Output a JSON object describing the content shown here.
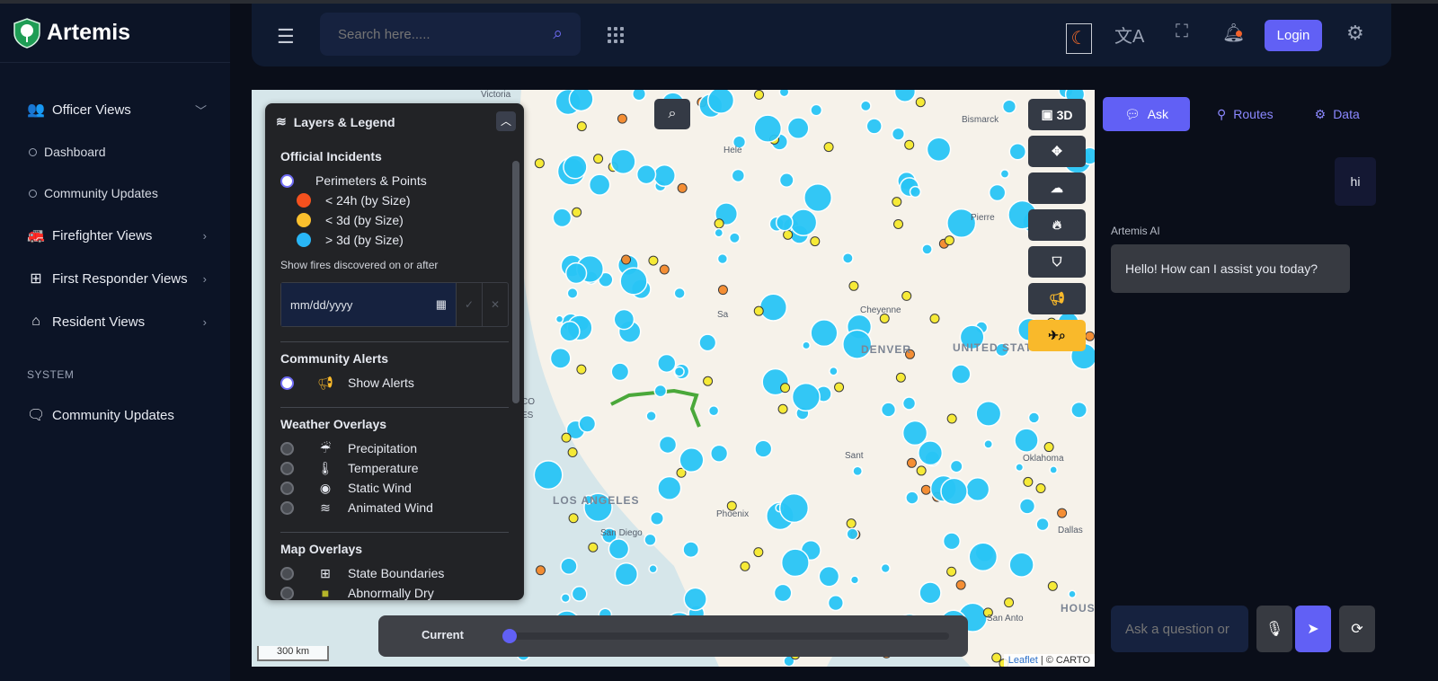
{
  "app": {
    "name": "Artemis"
  },
  "sidebar": {
    "officer": {
      "label": "Officer Views",
      "items": [
        {
          "label": "Dashboard"
        },
        {
          "label": "Community Updates"
        }
      ]
    },
    "groups": [
      {
        "label": "Firefighter Views"
      },
      {
        "label": "First Responder Views"
      },
      {
        "label": "Resident Views"
      }
    ],
    "section": "SYSTEM",
    "system_items": [
      {
        "label": "Community Updates"
      }
    ]
  },
  "topbar": {
    "search_placeholder": "Search here.....",
    "login_label": "Login",
    "notification_dot_color": "#f2622b"
  },
  "legend": {
    "title": "Layers & Legend",
    "official": {
      "title": "Official Incidents",
      "toggle": "Perimeters & Points",
      "checked": true,
      "keys": [
        {
          "label": "< 24h (by Size)",
          "color": "#f4511e"
        },
        {
          "label": "< 3d (by Size)",
          "color": "#fbc02d"
        },
        {
          "label": "> 3d (by Size)",
          "color": "#29b6f6"
        }
      ],
      "date_hint": "Show fires discovered on or after",
      "date_placeholder": "mm/dd/yyyy"
    },
    "community": {
      "title": "Community Alerts",
      "toggle": "Show Alerts",
      "checked": true
    },
    "weather": {
      "title": "Weather Overlays",
      "items": [
        {
          "label": "Precipitation",
          "icon": "cloud-rain-icon"
        },
        {
          "label": "Temperature",
          "icon": "thermometer-icon"
        },
        {
          "label": "Static Wind",
          "icon": "compass-icon"
        },
        {
          "label": "Animated Wind",
          "icon": "wind-icon"
        }
      ]
    },
    "map_overlays": {
      "title": "Map Overlays",
      "items": [
        {
          "label": "State Boundaries",
          "icon": "grid-icon"
        },
        {
          "label": "Abnormally Dry",
          "icon": "swatch-icon"
        }
      ]
    }
  },
  "map": {
    "btn_3d": "3D",
    "cities": [
      "Victoria",
      "Hele",
      "Bismarck",
      "Pierre",
      "Sa",
      "Cheyenne",
      "DENVER",
      "UNITED STATES",
      "Sant",
      "Oklahoma",
      "LOS ANGELES",
      "Phoenix",
      "San Diego",
      "Dallas",
      "San Anto",
      "HOUST",
      "CO",
      "ES"
    ],
    "time_label": "Current",
    "time_value": 0,
    "scale": "300 km",
    "attribution_link": "Leaflet",
    "attribution_rest": " | © CARTO"
  },
  "chat": {
    "tabs": [
      {
        "label": "Ask",
        "active": true
      },
      {
        "label": "Routes"
      },
      {
        "label": "Data"
      }
    ],
    "messages": [
      {
        "from": "user",
        "text": "hi"
      },
      {
        "from": "Artemis AI",
        "text": "Hello! How can I assist you today?"
      }
    ],
    "input_placeholder": "Ask a question or"
  },
  "colors": {
    "accent": "#6160f5",
    "sidebar": "#0c1426",
    "alert": "#f9b92b"
  }
}
